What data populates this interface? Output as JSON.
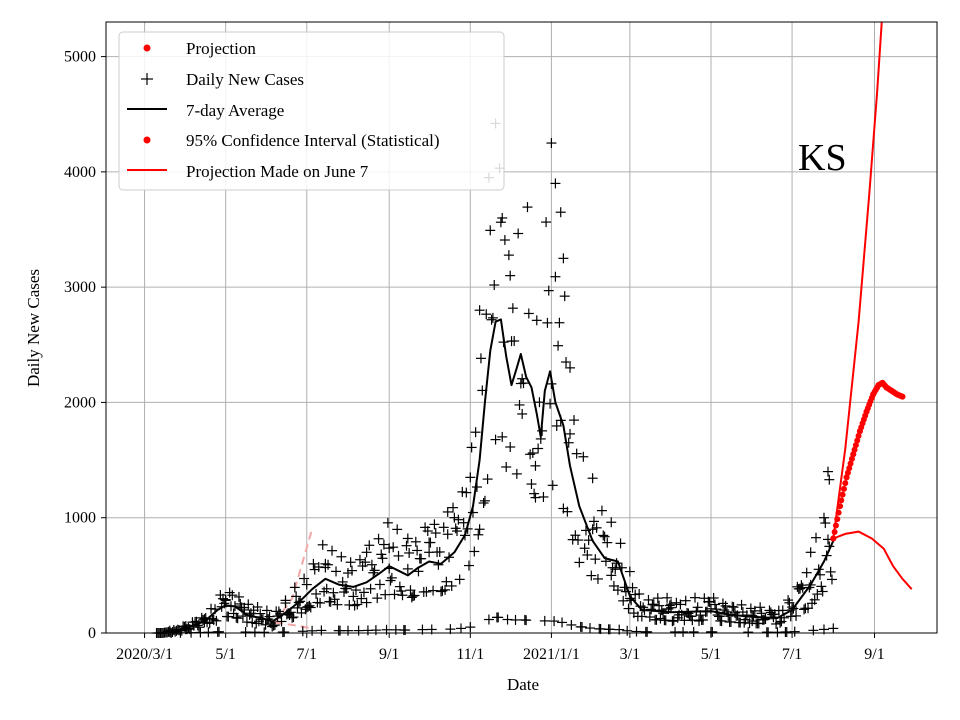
{
  "chart_data": {
    "type": "line",
    "title": "",
    "state_label": "KS",
    "xlabel": "Date",
    "ylabel": "Daily New Cases",
    "x_ticks": [
      {
        "date": "2020-03-01",
        "label": "2020/3/1"
      },
      {
        "date": "2020-05-01",
        "label": "5/1"
      },
      {
        "date": "2020-07-01",
        "label": "7/1"
      },
      {
        "date": "2020-09-01",
        "label": "9/1"
      },
      {
        "date": "2020-11-01",
        "label": "11/1"
      },
      {
        "date": "2021-01-01",
        "label": "2021/1/1"
      },
      {
        "date": "2021-03-01",
        "label": "3/1"
      },
      {
        "date": "2021-05-01",
        "label": "5/1"
      },
      {
        "date": "2021-07-01",
        "label": "7/1"
      },
      {
        "date": "2021-09-01",
        "label": "9/1"
      }
    ],
    "y_ticks": [
      0,
      1000,
      2000,
      3000,
      4000,
      5000
    ],
    "xlim": [
      "2020-02-01",
      "2021-10-18"
    ],
    "ylim": [
      0,
      5300
    ],
    "grid": true,
    "legend_position": "top-left",
    "legend": [
      {
        "label": "Projection",
        "marker": "dot",
        "color": "#ff0000"
      },
      {
        "label": "Daily New Cases",
        "marker": "plus",
        "color": "#000000"
      },
      {
        "label": "7-day Average",
        "marker": "line",
        "color": "#000000"
      },
      {
        "label": "95% Confidence Interval (Statistical)",
        "marker": "dot",
        "color": "#ff0000"
      },
      {
        "label": "Projection Made on June 7",
        "marker": "line",
        "color": "#ff0000"
      }
    ],
    "colors": {
      "cases": "#000000",
      "average": "#000000",
      "projection": "#ff0000",
      "old_projection": "#f4a7a7"
    },
    "average_7day": [
      [
        "2020-03-15",
        0
      ],
      [
        "2020-03-25",
        20
      ],
      [
        "2020-04-05",
        60
      ],
      [
        "2020-04-15",
        100
      ],
      [
        "2020-04-25",
        200
      ],
      [
        "2020-05-01",
        240
      ],
      [
        "2020-05-08",
        230
      ],
      [
        "2020-05-18",
        150
      ],
      [
        "2020-05-28",
        130
      ],
      [
        "2020-06-05",
        100
      ],
      [
        "2020-06-12",
        150
      ],
      [
        "2020-06-20",
        220
      ],
      [
        "2020-06-28",
        300
      ],
      [
        "2020-07-05",
        380
      ],
      [
        "2020-07-15",
        470
      ],
      [
        "2020-07-25",
        420
      ],
      [
        "2020-08-05",
        400
      ],
      [
        "2020-08-15",
        440
      ],
      [
        "2020-08-25",
        520
      ],
      [
        "2020-09-01",
        580
      ],
      [
        "2020-09-08",
        540
      ],
      [
        "2020-09-15",
        500
      ],
      [
        "2020-09-22",
        560
      ],
      [
        "2020-10-01",
        620
      ],
      [
        "2020-10-10",
        600
      ],
      [
        "2020-10-20",
        700
      ],
      [
        "2020-10-28",
        850
      ],
      [
        "2020-11-03",
        1100
      ],
      [
        "2020-11-08",
        1500
      ],
      [
        "2020-11-12",
        2000
      ],
      [
        "2020-11-16",
        2450
      ],
      [
        "2020-11-20",
        2700
      ],
      [
        "2020-11-24",
        2720
      ],
      [
        "2020-11-28",
        2400
      ],
      [
        "2020-12-02",
        2150
      ],
      [
        "2020-12-06",
        2300
      ],
      [
        "2020-12-09",
        2420
      ],
      [
        "2020-12-13",
        2220
      ],
      [
        "2020-12-17",
        2130
      ],
      [
        "2020-12-21",
        1900
      ],
      [
        "2020-12-24",
        1700
      ],
      [
        "2020-12-27",
        2100
      ],
      [
        "2020-12-31",
        2270
      ],
      [
        "2021-01-04",
        2000
      ],
      [
        "2021-01-10",
        1800
      ],
      [
        "2021-01-15",
        1450
      ],
      [
        "2021-01-22",
        1100
      ],
      [
        "2021-02-01",
        800
      ],
      [
        "2021-02-10",
        650
      ],
      [
        "2021-02-20",
        620
      ],
      [
        "2021-03-01",
        320
      ],
      [
        "2021-03-10",
        200
      ],
      [
        "2021-04-01",
        180
      ],
      [
        "2021-05-01",
        190
      ],
      [
        "2021-05-15",
        160
      ],
      [
        "2021-06-01",
        140
      ],
      [
        "2021-06-20",
        130
      ],
      [
        "2021-07-01",
        200
      ],
      [
        "2021-07-15",
        420
      ],
      [
        "2021-07-25",
        620
      ],
      [
        "2021-08-01",
        800
      ]
    ],
    "projection_central": [
      [
        "2021-08-01",
        820
      ],
      [
        "2021-08-06",
        1100
      ],
      [
        "2021-08-11",
        1350
      ],
      [
        "2021-08-16",
        1550
      ],
      [
        "2021-08-21",
        1750
      ],
      [
        "2021-08-26",
        1920
      ],
      [
        "2021-08-31",
        2070
      ],
      [
        "2021-09-04",
        2150
      ],
      [
        "2021-09-07",
        2170
      ],
      [
        "2021-09-10",
        2130
      ],
      [
        "2021-09-14",
        2100
      ],
      [
        "2021-09-18",
        2070
      ],
      [
        "2021-09-22",
        2050
      ]
    ],
    "ci_upper": [
      [
        "2021-08-01",
        820
      ],
      [
        "2021-08-10",
        1600
      ],
      [
        "2021-08-20",
        2700
      ],
      [
        "2021-08-28",
        3800
      ],
      [
        "2021-09-03",
        4700
      ],
      [
        "2021-09-07",
        5400
      ]
    ],
    "ci_lower": [
      [
        "2021-08-01",
        820
      ],
      [
        "2021-08-10",
        860
      ],
      [
        "2021-08-20",
        880
      ],
      [
        "2021-08-30",
        820
      ],
      [
        "2021-09-08",
        730
      ],
      [
        "2021-09-15",
        580
      ],
      [
        "2021-09-22",
        470
      ],
      [
        "2021-09-29",
        380
      ]
    ],
    "old_projection_upper": [
      [
        "2020-06-07",
        90
      ],
      [
        "2020-06-20",
        300
      ],
      [
        "2020-07-05",
        900
      ]
    ],
    "old_projection_lower": [
      [
        "2020-06-07",
        90
      ],
      [
        "2020-06-20",
        70
      ],
      [
        "2020-07-05",
        40
      ]
    ],
    "daily_cases_sample": [
      [
        "2020-03-20",
        20
      ],
      [
        "2020-04-01",
        60
      ],
      [
        "2020-04-15",
        120
      ],
      [
        "2020-05-01",
        290
      ],
      [
        "2020-05-15",
        200
      ],
      [
        "2020-06-01",
        120
      ],
      [
        "2020-06-15",
        260
      ],
      [
        "2020-07-01",
        420
      ],
      [
        "2020-07-15",
        600
      ],
      [
        "2020-08-01",
        520
      ],
      [
        "2020-08-15",
        700
      ],
      [
        "2020-09-01",
        560
      ],
      [
        "2020-09-15",
        820
      ],
      [
        "2020-10-01",
        700
      ],
      [
        "2020-10-15",
        1050
      ],
      [
        "2020-11-01",
        1350
      ],
      [
        "2020-11-08",
        2800
      ],
      [
        "2020-11-15",
        3950
      ],
      [
        "2020-11-20",
        4420
      ],
      [
        "2020-11-25",
        3600
      ],
      [
        "2020-12-01",
        3100
      ],
      [
        "2020-12-10",
        1900
      ],
      [
        "2020-12-20",
        1450
      ],
      [
        "2021-01-01",
        4250
      ],
      [
        "2021-01-04",
        3900
      ],
      [
        "2021-01-08",
        3650
      ],
      [
        "2021-01-10",
        3250
      ],
      [
        "2021-01-15",
        2300
      ],
      [
        "2021-02-01",
        900
      ],
      [
        "2021-02-15",
        500
      ],
      [
        "2021-03-01",
        300
      ],
      [
        "2021-04-01",
        250
      ],
      [
        "2021-05-01",
        210
      ],
      [
        "2021-06-01",
        150
      ],
      [
        "2021-07-01",
        200
      ],
      [
        "2021-07-15",
        700
      ],
      [
        "2021-07-25",
        1000
      ],
      [
        "2021-07-28",
        1400
      ],
      [
        "2021-07-29",
        1330
      ]
    ]
  }
}
